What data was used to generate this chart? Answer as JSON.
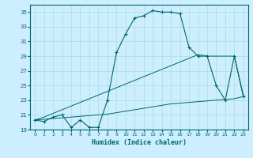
{
  "xlabel": "Humidex (Indice chaleur)",
  "bg_color": "#cceeff",
  "grid_color": "#aadddd",
  "line_color": "#006666",
  "hours": [
    0,
    1,
    2,
    3,
    4,
    5,
    6,
    7,
    8,
    9,
    10,
    11,
    12,
    13,
    14,
    15,
    16,
    17,
    18,
    19,
    20,
    21,
    22,
    23
  ],
  "main_curve": [
    20.3,
    20.1,
    20.7,
    21.0,
    19.3,
    20.3,
    19.3,
    19.3,
    23.0,
    29.5,
    32.0,
    34.2,
    34.5,
    35.2,
    35.0,
    35.0,
    34.8,
    30.2,
    29.0,
    29.0,
    25.0,
    23.0,
    29.0,
    23.5
  ],
  "ref_line_steep": [
    20.3,
    20.7,
    21.2,
    21.7,
    22.2,
    22.7,
    23.2,
    23.7,
    24.2,
    24.7,
    25.2,
    25.7,
    26.2,
    26.7,
    27.2,
    27.7,
    28.2,
    28.7,
    29.2,
    29.0,
    29.0,
    29.0,
    29.0,
    23.5
  ],
  "ref_line_flat": [
    20.3,
    20.4,
    20.5,
    20.6,
    20.7,
    20.8,
    20.9,
    21.0,
    21.1,
    21.3,
    21.5,
    21.7,
    21.9,
    22.1,
    22.3,
    22.5,
    22.6,
    22.7,
    22.8,
    22.9,
    23.0,
    23.1,
    23.2,
    23.5
  ],
  "ylim": [
    19,
    36
  ],
  "yticks": [
    19,
    21,
    23,
    25,
    27,
    29,
    31,
    33,
    35
  ],
  "xlim": [
    -0.5,
    23.5
  ],
  "xticks": [
    0,
    1,
    2,
    3,
    4,
    5,
    6,
    7,
    8,
    9,
    10,
    11,
    12,
    13,
    14,
    15,
    16,
    17,
    18,
    19,
    20,
    21,
    22,
    23
  ]
}
